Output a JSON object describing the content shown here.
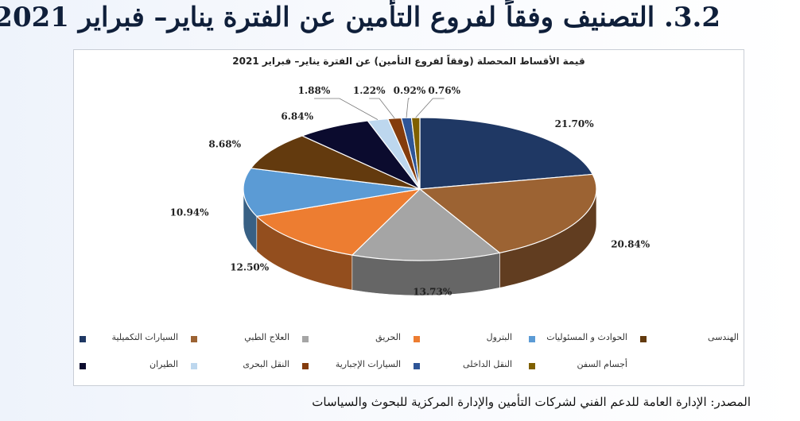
{
  "page": {
    "title": "3.2. التصنيف وفقاً لفروع التأمين عن الفترة يناير– فبراير 2021",
    "source": "المصدر: الإدارة العامة للدعم الفني لشركات التأمين والإدارة المركزية للبحوث والسياسات"
  },
  "chart_data": {
    "type": "pie",
    "title": "قيمة الأقساط المحصلة (وفقاً لفروع التأمين) عن الفترة يناير– فبراير 2021",
    "categories": [
      "السيارات التكميلية",
      "العلاج الطبي",
      "الحريق",
      "البترول",
      "الحوادث و المسئوليات",
      "الهندسى",
      "الطيران",
      "النقل البحرى",
      "السيارات الإجبارية",
      "النقل الداخلى",
      "أجسام السفن"
    ],
    "values": [
      21.7,
      20.84,
      13.73,
      12.5,
      10.94,
      8.68,
      6.84,
      1.88,
      1.22,
      0.92,
      0.76
    ],
    "value_labels": [
      "21.70%",
      "20.84%",
      "13.73%",
      "12.50%",
      "10.94%",
      "8.68%",
      "6.84%",
      "1.88%",
      "1.22%",
      "0.92%",
      "0.76%"
    ],
    "colors": [
      "#1f3864",
      "#9c6333",
      "#a5a5a5",
      "#ed7d31",
      "#5b9bd5",
      "#633a0e",
      "#0b0b2e",
      "#bdd7ee",
      "#843c0c",
      "#2e5597",
      "#7f6000"
    ],
    "legend_position": "bottom",
    "style": "3d"
  }
}
